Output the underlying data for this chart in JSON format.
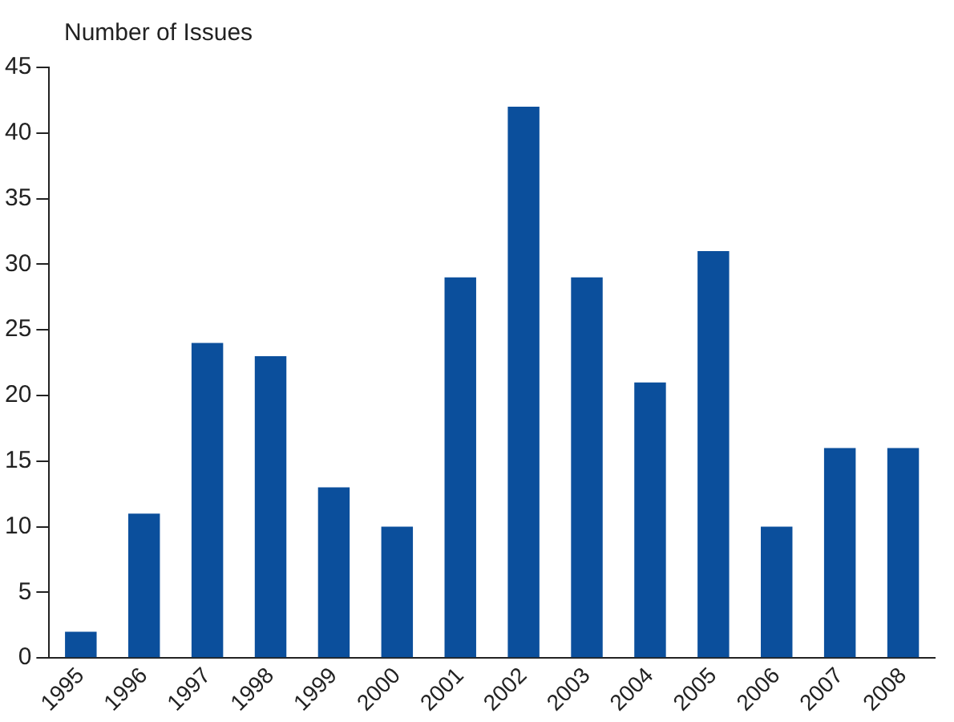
{
  "chart_data": {
    "type": "bar",
    "ylabel": "Number of Issues",
    "categories": [
      "1995",
      "1996",
      "1997",
      "1998",
      "1999",
      "2000",
      "2001",
      "2002",
      "2003",
      "2004",
      "2005",
      "2006",
      "2007",
      "2008"
    ],
    "values": [
      2,
      11,
      24,
      23,
      13,
      10,
      29,
      42,
      29,
      21,
      31,
      10,
      16,
      16
    ],
    "color": "#0b4f9c",
    "ylim": [
      0,
      45
    ],
    "yticks": [
      0,
      5,
      10,
      15,
      20,
      25,
      30,
      35,
      40,
      45
    ],
    "grid": false,
    "legend": false
  }
}
